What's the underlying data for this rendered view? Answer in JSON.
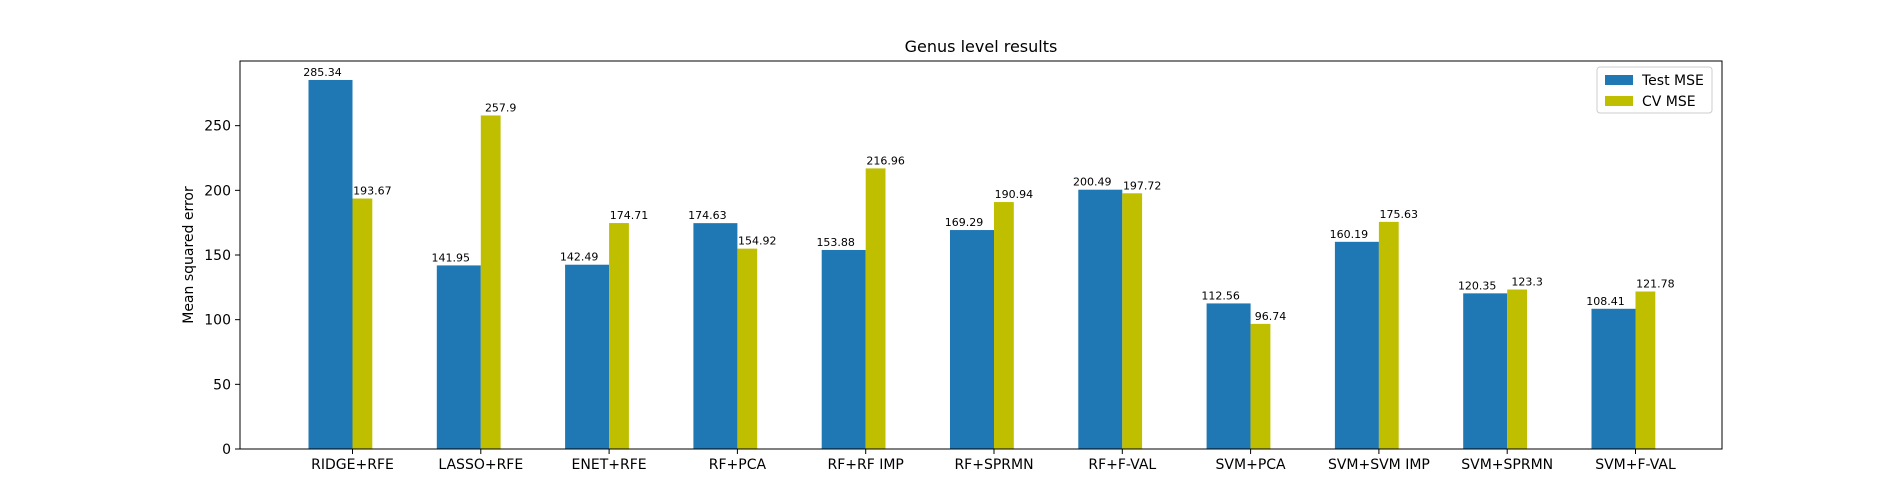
{
  "chart_data": {
    "type": "bar",
    "title": "Genus level results",
    "xlabel": "",
    "ylabel": "Mean squared error",
    "ylim": [
      0,
      300
    ],
    "yticks": [
      0,
      50,
      100,
      150,
      200,
      250
    ],
    "grid": false,
    "legend_position": "top-right",
    "categories": [
      "RIDGE+RFE",
      "LASSO+RFE",
      "ENET+RFE",
      "RF+PCA",
      "RF+RF IMP",
      "RF+SPRMN",
      "RF+F-VAL",
      "SVM+PCA",
      "SVM+SVM IMP",
      "SVM+SPRMN",
      "SVM+F-VAL"
    ],
    "series": [
      {
        "name": "Test MSE",
        "color": "#1f77b4",
        "values": [
          285.34,
          141.95,
          142.49,
          174.63,
          153.88,
          169.29,
          200.49,
          112.56,
          160.19,
          120.35,
          108.41
        ],
        "labels": [
          "285.34",
          "141.95",
          "142.49",
          "174.63",
          "153.88",
          "169.29",
          "200.49",
          "112.56",
          "160.19",
          "120.35",
          "108.41"
        ]
      },
      {
        "name": "CV MSE",
        "color": "#bfbf00",
        "values": [
          193.67,
          257.9,
          174.71,
          154.92,
          216.96,
          190.94,
          197.72,
          96.74,
          175.63,
          123.3,
          121.78
        ],
        "labels": [
          "193.67",
          "257.9",
          "174.71",
          "154.92",
          "216.96",
          "190.94",
          "197.72",
          "96.74",
          "175.63",
          "123.3",
          "121.78"
        ]
      }
    ]
  }
}
